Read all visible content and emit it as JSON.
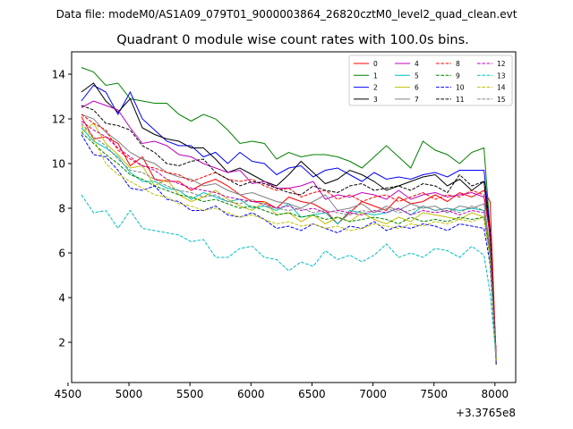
{
  "header": {
    "data_file": "Data file: modeM0/AS1A09_079T01_9000003864_26820cztM0_level2_quad_clean.evt"
  },
  "chart_data": {
    "type": "line",
    "title": "Quadrant 0 module wise count rates with 100.0s bins.",
    "xlabel": "",
    "ylabel": "",
    "x_offset_label": "+3.3765e8",
    "xlim": [
      4530,
      8170
    ],
    "ylim": [
      0.2,
      15.0
    ],
    "x_ticks": [
      4500,
      5000,
      5500,
      6000,
      6500,
      7000,
      7500,
      8000
    ],
    "x_tick_labels": [
      "4500",
      "5000",
      "5500",
      "6000",
      "6500",
      "7000",
      "7500",
      "8000"
    ],
    "y_ticks": [
      2,
      4,
      6,
      8,
      10,
      12,
      14
    ],
    "y_tick_labels": [
      "2",
      "4",
      "6",
      "8",
      "10",
      "12",
      "14"
    ],
    "grid": false,
    "legend_position": "top-right",
    "x": [
      4610,
      4710,
      4810,
      4910,
      5010,
      5110,
      5210,
      5310,
      5410,
      5510,
      5610,
      5710,
      5810,
      5910,
      6010,
      6110,
      6210,
      6310,
      6410,
      6510,
      6610,
      6710,
      6810,
      6910,
      7010,
      7110,
      7210,
      7310,
      7410,
      7510,
      7610,
      7710,
      7810,
      7910,
      7960,
      8010
    ],
    "series": [
      {
        "name": "0",
        "color": "#ff0000",
        "dash": "solid",
        "values": [
          12.1,
          11.1,
          11.2,
          10.9,
          9.9,
          10.3,
          9.3,
          9.2,
          9.2,
          8.8,
          9.1,
          9.3,
          9.0,
          8.6,
          8.3,
          8.3,
          8.0,
          8.5,
          8.3,
          8.2,
          7.9,
          7.3,
          7.8,
          8.3,
          8.1,
          7.9,
          8.5,
          8.2,
          8.3,
          8.6,
          8.3,
          8.7,
          8.5,
          8.8,
          8.3,
          1.3
        ]
      },
      {
        "name": "1",
        "color": "#008000",
        "dash": "solid",
        "values": [
          14.3,
          14.1,
          13.5,
          13.6,
          12.9,
          12.8,
          12.7,
          12.7,
          12.2,
          11.9,
          12.2,
          12.0,
          11.5,
          10.9,
          11.0,
          10.9,
          10.2,
          10.5,
          10.3,
          10.4,
          10.4,
          10.3,
          10.1,
          9.8,
          10.3,
          10.8,
          10.3,
          9.8,
          11.0,
          10.6,
          10.4,
          10.0,
          10.5,
          10.7,
          7.0,
          1.2
        ]
      },
      {
        "name": "2",
        "color": "#0000ff",
        "dash": "solid",
        "values": [
          12.8,
          13.5,
          13.2,
          12.2,
          13.2,
          12.0,
          11.5,
          11.0,
          10.8,
          10.8,
          10.3,
          10.5,
          10.0,
          10.5,
          10.1,
          10.0,
          9.5,
          9.8,
          9.9,
          9.4,
          9.7,
          9.8,
          9.5,
          9.2,
          9.6,
          9.3,
          9.4,
          9.3,
          9.5,
          9.6,
          9.4,
          9.7,
          9.7,
          9.7,
          7.0,
          1.2
        ]
      },
      {
        "name": "3",
        "color": "#000000",
        "dash": "solid",
        "values": [
          13.2,
          13.6,
          12.8,
          12.3,
          12.9,
          11.6,
          11.3,
          11.1,
          11.0,
          10.7,
          10.7,
          10.2,
          9.6,
          9.8,
          9.5,
          9.2,
          9.0,
          9.5,
          10.1,
          9.6,
          9.1,
          9.3,
          9.7,
          9.5,
          9.2,
          8.8,
          9.0,
          9.2,
          9.4,
          9.5,
          9.0,
          9.3,
          8.8,
          9.2,
          6.6,
          1.0
        ]
      },
      {
        "name": "4",
        "color": "#bf00bf",
        "dash": "solid",
        "values": [
          12.5,
          12.8,
          12.6,
          12.4,
          11.6,
          10.9,
          11.0,
          10.8,
          10.4,
          10.3,
          10.0,
          9.8,
          9.6,
          9.7,
          9.1,
          9.2,
          8.9,
          8.9,
          9.0,
          9.2,
          8.4,
          8.6,
          8.5,
          8.7,
          8.6,
          8.4,
          8.8,
          8.4,
          8.6,
          8.7,
          8.5,
          8.6,
          8.7,
          8.5,
          6.8,
          1.4
        ]
      },
      {
        "name": "5",
        "color": "#00bfbf",
        "dash": "solid",
        "values": [
          11.6,
          11.0,
          10.7,
          10.3,
          9.6,
          9.2,
          9.2,
          8.9,
          8.8,
          8.4,
          8.7,
          8.5,
          8.3,
          8.4,
          8.0,
          8.1,
          7.9,
          8.2,
          7.6,
          7.7,
          7.8,
          7.3,
          7.9,
          7.8,
          7.7,
          7.8,
          8.0,
          7.7,
          8.1,
          7.9,
          8.0,
          7.9,
          8.0,
          7.9,
          6.0,
          1.3
        ]
      },
      {
        "name": "6",
        "color": "#bfbf00",
        "dash": "solid",
        "values": [
          11.4,
          11.8,
          10.9,
          10.4,
          9.8,
          9.9,
          9.0,
          9.3,
          8.6,
          8.3,
          8.5,
          8.8,
          8.4,
          8.1,
          7.9,
          8.3,
          7.7,
          7.8,
          7.4,
          7.7,
          7.3,
          7.6,
          7.4,
          7.8,
          7.5,
          7.3,
          7.6,
          7.4,
          7.8,
          7.7,
          7.6,
          7.5,
          7.8,
          7.6,
          5.8,
          1.1
        ]
      },
      {
        "name": "7",
        "color": "#808080",
        "dash": "solid",
        "values": [
          12.2,
          12.0,
          11.4,
          11.0,
          10.5,
          10.2,
          10.0,
          9.6,
          9.4,
          9.3,
          9.0,
          9.1,
          8.8,
          8.6,
          8.7,
          8.5,
          8.3,
          8.2,
          8.0,
          8.3,
          8.6,
          7.9,
          8.0,
          8.2,
          7.8,
          8.1,
          7.9,
          8.2,
          8.0,
          8.1,
          7.8,
          8.1,
          8.0,
          8.2,
          6.2,
          1.2
        ]
      },
      {
        "name": "8",
        "color": "#ff0000",
        "dash": "dashed",
        "values": [
          12.2,
          11.8,
          11.5,
          10.6,
          10.2,
          9.9,
          9.8,
          9.6,
          9.5,
          9.2,
          9.4,
          9.6,
          9.3,
          9.2,
          9.3,
          9.0,
          8.8,
          8.9,
          8.5,
          8.7,
          8.8,
          8.4,
          8.6,
          8.3,
          8.5,
          8.6,
          8.3,
          8.5,
          8.7,
          8.4,
          8.6,
          8.5,
          8.8,
          8.6,
          6.8,
          1.5
        ]
      },
      {
        "name": "9",
        "color": "#008000",
        "dash": "dashed",
        "values": [
          11.4,
          10.9,
          10.4,
          10.0,
          9.5,
          9.3,
          9.0,
          8.8,
          8.6,
          8.5,
          8.3,
          8.4,
          8.2,
          8.0,
          8.1,
          7.9,
          7.7,
          7.8,
          7.6,
          7.7,
          7.5,
          7.6,
          7.4,
          7.5,
          7.6,
          7.5,
          7.3,
          7.6,
          7.4,
          7.5,
          7.4,
          7.6,
          7.5,
          7.6,
          5.9,
          1.2
        ]
      },
      {
        "name": "10",
        "color": "#0000ff",
        "dash": "dashed",
        "values": [
          11.3,
          10.4,
          10.3,
          9.7,
          8.9,
          8.8,
          9.0,
          8.4,
          8.3,
          7.9,
          7.9,
          8.1,
          7.7,
          7.6,
          7.8,
          7.5,
          7.1,
          7.2,
          7.0,
          7.3,
          7.1,
          6.9,
          7.2,
          7.1,
          7.4,
          7.0,
          7.2,
          7.1,
          7.3,
          7.2,
          7.0,
          7.3,
          7.2,
          7.1,
          5.5,
          1.1
        ]
      },
      {
        "name": "11",
        "color": "#000000",
        "dash": "dashed",
        "values": [
          12.6,
          12.4,
          11.8,
          11.7,
          11.5,
          10.8,
          10.5,
          10.0,
          9.9,
          10.1,
          10.2,
          9.6,
          9.3,
          9.0,
          9.2,
          9.1,
          8.9,
          8.7,
          8.6,
          9.0,
          8.8,
          8.7,
          9.0,
          9.1,
          8.8,
          8.9,
          9.0,
          8.8,
          9.1,
          9.0,
          8.7,
          9.5,
          9.0,
          9.2,
          7.0,
          1.3
        ]
      },
      {
        "name": "12",
        "color": "#bf00bf",
        "dash": "dashed",
        "values": [
          11.9,
          11.5,
          11.2,
          10.7,
          10.3,
          9.9,
          9.7,
          9.3,
          9.1,
          8.9,
          8.8,
          8.7,
          8.5,
          8.4,
          8.3,
          8.2,
          8.0,
          8.1,
          7.9,
          8.0,
          7.8,
          7.9,
          7.8,
          7.7,
          7.9,
          7.8,
          8.0,
          7.7,
          7.9,
          7.8,
          7.9,
          7.7,
          7.9,
          7.8,
          6.1,
          1.3
        ]
      },
      {
        "name": "13",
        "color": "#00bfbf",
        "dash": "dashed",
        "values": [
          8.6,
          7.8,
          7.9,
          7.1,
          7.9,
          7.1,
          7.0,
          6.9,
          6.8,
          6.5,
          6.6,
          5.8,
          5.8,
          6.2,
          6.3,
          5.8,
          5.7,
          5.2,
          5.6,
          5.4,
          6.1,
          5.7,
          5.9,
          5.6,
          5.9,
          6.4,
          5.8,
          6.0,
          5.8,
          6.2,
          6.1,
          5.8,
          6.3,
          5.9,
          4.2,
          1.3
        ]
      },
      {
        "name": "14",
        "color": "#bfbf00",
        "dash": "dashed",
        "values": [
          11.7,
          11.1,
          10.0,
          9.5,
          9.2,
          8.9,
          8.6,
          8.5,
          8.2,
          8.1,
          7.9,
          8.0,
          7.8,
          7.6,
          7.7,
          7.5,
          7.3,
          7.4,
          7.2,
          7.3,
          7.1,
          7.2,
          7.0,
          7.1,
          7.3,
          7.2,
          7.1,
          7.3,
          7.2,
          7.4,
          7.3,
          7.5,
          7.4,
          7.6,
          5.8,
          1.2
        ]
      },
      {
        "name": "15",
        "color": "#808080",
        "dash": "dashed",
        "values": [
          11.8,
          11.2,
          10.8,
          10.2,
          9.7,
          9.6,
          9.3,
          9.0,
          8.8,
          8.7,
          8.5,
          8.6,
          8.3,
          8.2,
          8.4,
          8.1,
          8.0,
          7.9,
          8.0,
          7.8,
          7.9,
          7.8,
          7.7,
          7.9,
          7.8,
          8.0,
          7.8,
          7.9,
          8.1,
          7.9,
          8.0,
          7.8,
          8.1,
          7.9,
          6.2,
          1.4
        ]
      }
    ]
  }
}
